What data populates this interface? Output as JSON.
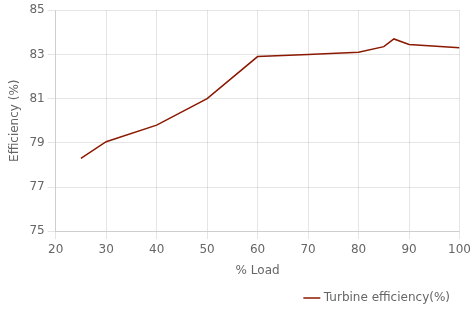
{
  "chart_data": {
    "type": "line",
    "x": [
      25,
      30,
      40,
      50,
      60,
      70,
      80,
      85,
      87,
      90,
      100
    ],
    "series": [
      {
        "name": "Turbine efficiency(%)",
        "color": "#8B1800",
        "values": [
          78.3,
          79.05,
          79.8,
          81.0,
          82.9,
          83.0,
          83.1,
          83.35,
          83.7,
          83.45,
          83.3
        ]
      }
    ],
    "xlabel": "% Load",
    "ylabel": "Efficiency (%)",
    "xlim": [
      20,
      100
    ],
    "ylim": [
      75,
      85
    ],
    "xticks": [
      20,
      30,
      40,
      50,
      60,
      70,
      80,
      90,
      100
    ],
    "yticks": [
      75,
      77,
      79,
      81,
      83,
      85
    ],
    "grid": true,
    "legend": "lower right",
    "marker": "none"
  }
}
